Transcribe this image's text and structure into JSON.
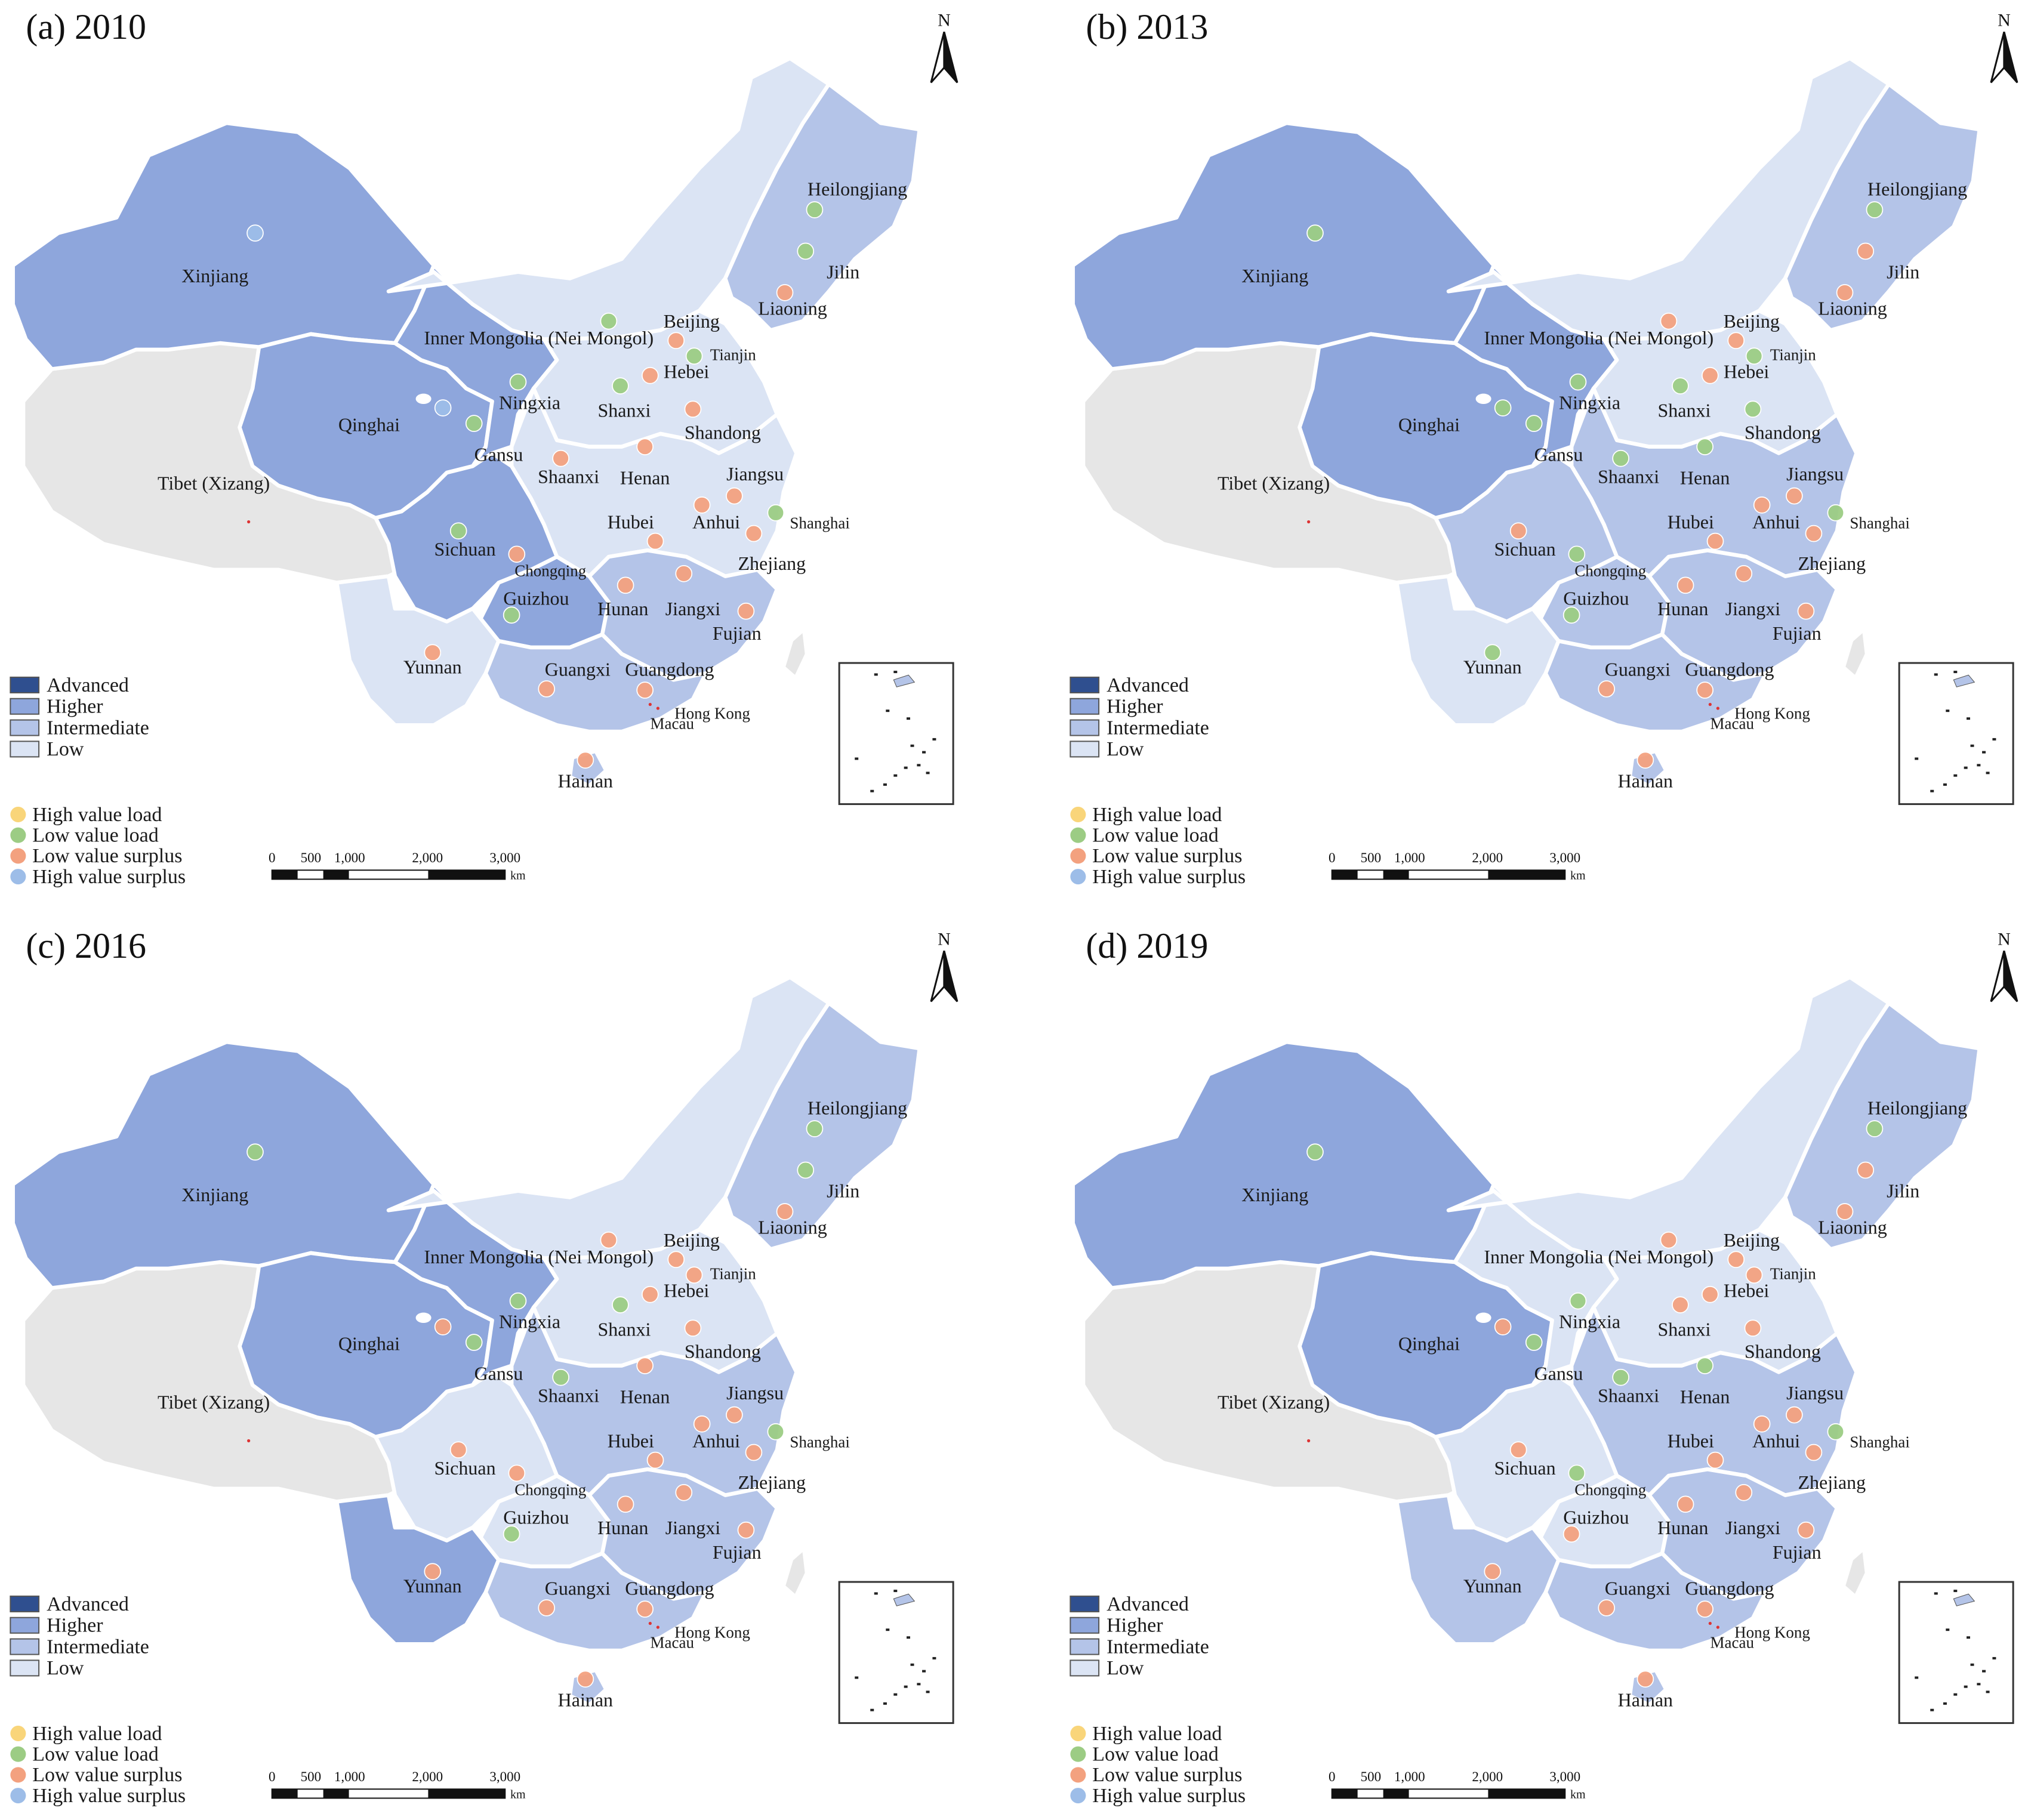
{
  "figure": {
    "panels": [
      {
        "id": "a",
        "title": "(a) 2010",
        "levels": {
          "xinjiang": "higher",
          "tibet": "none",
          "qinghai": "higher",
          "gansu": "higher",
          "sichuan": "higher",
          "guizhou": "higher",
          "yunnan": "low",
          "inner_mongolia": "low",
          "north_china": "low",
          "central_east": "low",
          "southeast": "intermediate",
          "south": "intermediate",
          "northeast": "intermediate",
          "hainan": "intermediate"
        },
        "markers": {
          "Xinjiang": "high_surplus",
          "Qinghai": "high_surplus",
          "Gansu": "low_load",
          "Ningxia": "low_load",
          "Inner Mongolia": "low_load",
          "Beijing": "low_surplus",
          "Tianjin": "low_load",
          "Hebei": "low_surplus",
          "Shanxi": "low_load",
          "Shandong": "low_surplus",
          "Shaanxi": "low_surplus",
          "Henan": "low_surplus",
          "Jiangsu": "low_surplus",
          "Anhui": "low_surplus",
          "Shanghai": "low_load",
          "Hubei": "low_surplus",
          "Zhejiang": "low_surplus",
          "Sichuan": "low_load",
          "Chongqing": "low_surplus",
          "Hunan": "low_surplus",
          "Jiangxi": "low_surplus",
          "Guizhou": "low_load",
          "Fujian": "low_surplus",
          "Yunnan": "low_surplus",
          "Guangxi": "low_surplus",
          "Guangdong": "low_surplus",
          "Hainan": "low_surplus",
          "Heilongjiang": "low_load",
          "Jilin": "low_load",
          "Liaoning": "low_surplus"
        }
      },
      {
        "id": "b",
        "title": "(b) 2013",
        "levels": {
          "xinjiang": "higher",
          "tibet": "none",
          "qinghai": "higher",
          "gansu": "higher",
          "sichuan": "intermediate",
          "guizhou": "intermediate",
          "yunnan": "low",
          "inner_mongolia": "low",
          "north_china": "low",
          "central_east": "intermediate",
          "southeast": "intermediate",
          "south": "intermediate",
          "northeast": "intermediate",
          "hainan": "intermediate"
        },
        "markers": {
          "Xinjiang": "low_load",
          "Qinghai": "low_load",
          "Gansu": "low_load",
          "Ningxia": "low_load",
          "Inner Mongolia": "low_surplus",
          "Beijing": "low_surplus",
          "Tianjin": "low_load",
          "Hebei": "low_surplus",
          "Shanxi": "low_load",
          "Shandong": "low_load",
          "Shaanxi": "low_load",
          "Henan": "low_load",
          "Jiangsu": "low_surplus",
          "Anhui": "low_surplus",
          "Shanghai": "low_load",
          "Hubei": "low_surplus",
          "Zhejiang": "low_surplus",
          "Sichuan": "low_surplus",
          "Chongqing": "low_load",
          "Hunan": "low_surplus",
          "Jiangxi": "low_surplus",
          "Guizhou": "low_load",
          "Fujian": "low_surplus",
          "Yunnan": "low_load",
          "Guangxi": "low_surplus",
          "Guangdong": "low_surplus",
          "Hainan": "low_surplus",
          "Heilongjiang": "low_load",
          "Jilin": "low_surplus",
          "Liaoning": "low_surplus"
        }
      },
      {
        "id": "c",
        "title": "(c) 2016",
        "levels": {
          "xinjiang": "higher",
          "tibet": "none",
          "qinghai": "higher",
          "gansu": "higher",
          "sichuan": "low",
          "guizhou": "low",
          "yunnan": "higher",
          "inner_mongolia": "low",
          "north_china": "low",
          "central_east": "intermediate",
          "southeast": "intermediate",
          "south": "intermediate",
          "northeast": "intermediate",
          "hainan": "intermediate"
        },
        "markers": {
          "Xinjiang": "low_load",
          "Qinghai": "low_surplus",
          "Gansu": "low_load",
          "Ningxia": "low_load",
          "Inner Mongolia": "low_surplus",
          "Beijing": "low_surplus",
          "Tianjin": "low_surplus",
          "Hebei": "low_surplus",
          "Shanxi": "low_load",
          "Shandong": "low_surplus",
          "Shaanxi": "low_load",
          "Henan": "low_surplus",
          "Jiangsu": "low_surplus",
          "Anhui": "low_surplus",
          "Shanghai": "low_load",
          "Hubei": "low_surplus",
          "Zhejiang": "low_surplus",
          "Sichuan": "low_surplus",
          "Chongqing": "low_surplus",
          "Hunan": "low_surplus",
          "Jiangxi": "low_surplus",
          "Guizhou": "low_load",
          "Fujian": "low_surplus",
          "Yunnan": "low_surplus",
          "Guangxi": "low_surplus",
          "Guangdong": "low_surplus",
          "Hainan": "low_surplus",
          "Heilongjiang": "low_load",
          "Jilin": "low_load",
          "Liaoning": "low_surplus"
        }
      },
      {
        "id": "d",
        "title": "(d) 2019",
        "levels": {
          "xinjiang": "higher",
          "tibet": "none",
          "qinghai": "higher",
          "gansu": "low",
          "sichuan": "low",
          "guizhou": "low",
          "yunnan": "intermediate",
          "inner_mongolia": "low",
          "north_china": "low",
          "central_east": "intermediate",
          "southeast": "intermediate",
          "south": "intermediate",
          "northeast": "intermediate",
          "hainan": "intermediate"
        },
        "markers": {
          "Xinjiang": "low_load",
          "Qinghai": "low_surplus",
          "Gansu": "low_load",
          "Ningxia": "low_load",
          "Inner Mongolia": "low_surplus",
          "Beijing": "low_surplus",
          "Tianjin": "low_surplus",
          "Hebei": "low_surplus",
          "Shanxi": "low_surplus",
          "Shandong": "low_surplus",
          "Shaanxi": "low_load",
          "Henan": "low_load",
          "Jiangsu": "low_surplus",
          "Anhui": "low_surplus",
          "Shanghai": "low_load",
          "Hubei": "low_surplus",
          "Zhejiang": "low_surplus",
          "Sichuan": "low_surplus",
          "Chongqing": "low_load",
          "Hunan": "low_surplus",
          "Jiangxi": "low_surplus",
          "Guizhou": "low_surplus",
          "Fujian": "low_surplus",
          "Yunnan": "low_surplus",
          "Guangxi": "low_surplus",
          "Guangdong": "low_surplus",
          "Hainan": "low_surplus",
          "Heilongjiang": "low_load",
          "Jilin": "low_surplus",
          "Liaoning": "low_surplus"
        }
      }
    ],
    "province_labels": {
      "Xinjiang": "Xinjiang",
      "Tibet": "Tibet (Xizang)",
      "Qinghai": "Qinghai",
      "Gansu": "Gansu",
      "Ningxia": "Ningxia",
      "Inner Mongolia": "Inner Mongolia (Nei Mongol)",
      "Beijing": "Beijing",
      "Tianjin": "Tianjin",
      "Hebei": "Hebei",
      "Shanxi": "Shanxi",
      "Shandong": "Shandong",
      "Shaanxi": "Shaanxi",
      "Henan": "Henan",
      "Jiangsu": "Jiangsu",
      "Anhui": "Anhui",
      "Shanghai": "Shanghai",
      "Hubei": "Hubei",
      "Zhejiang": "Zhejiang",
      "Sichuan": "Sichuan",
      "Chongqing": "Chongqing",
      "Hunan": "Hunan",
      "Jiangxi": "Jiangxi",
      "Guizhou": "Guizhou",
      "Fujian": "Fujian",
      "Yunnan": "Yunnan",
      "Guangxi": "Guangxi",
      "Guangdong": "Guangdong",
      "Hong Kong": "Hong Kong",
      "Macau": "Macau",
      "Hainan": "Hainan",
      "Heilongjiang": "Heilongjiang",
      "Jilin": "Jilin",
      "Liaoning": "Liaoning"
    },
    "level_legend": [
      {
        "key": "advanced",
        "label": "Advanced",
        "color": "#2f4f8f"
      },
      {
        "key": "higher",
        "label": "Higher",
        "color": "#8ea6dc"
      },
      {
        "key": "intermediate",
        "label": "Intermediate",
        "color": "#b4c4e8"
      },
      {
        "key": "low",
        "label": "Low",
        "color": "#dbe4f4"
      }
    ],
    "marker_legend": [
      {
        "key": "high_load",
        "label": "High value load",
        "color": "#f9d57a"
      },
      {
        "key": "low_load",
        "label": "Low value load",
        "color": "#9ccc84"
      },
      {
        "key": "low_surplus",
        "label": "Low value surplus",
        "color": "#f3a17f"
      },
      {
        "key": "high_surplus",
        "label": "High value surplus",
        "color": "#9dbde8"
      }
    ],
    "no_data_color": "#e6e6e6",
    "north_label": "N",
    "scale_ticks": [
      "0",
      "500",
      "1,000",
      "2,000",
      "3,000"
    ],
    "scale_unit": "km"
  }
}
